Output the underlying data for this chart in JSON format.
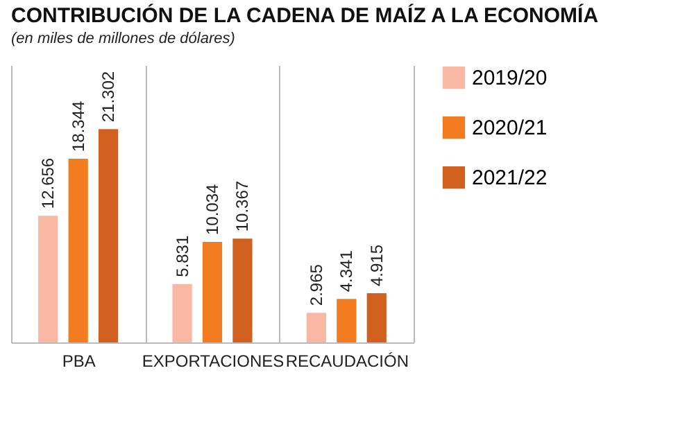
{
  "chart_data": {
    "type": "bar",
    "title": "CONTRIBUCIÓN DE LA CADENA DE MAÍZ A LA ECONOMÍA",
    "subtitle": "(en miles de millones de dólares)",
    "categories": [
      "PBA",
      "EXPORTACIONES",
      "RECAUDACIÓN"
    ],
    "series": [
      {
        "name": "2019/20",
        "color": "#f9b8a4",
        "values": [
          12.656,
          5.831,
          2.965
        ],
        "value_labels": [
          "12.656",
          "5.831",
          "2.965"
        ]
      },
      {
        "name": "2020/21",
        "color": "#f47c20",
        "values": [
          18.344,
          10.034,
          4.341
        ],
        "value_labels": [
          "18.344",
          "10.034",
          "4.341"
        ]
      },
      {
        "name": "2021/22",
        "color": "#d2601e",
        "values": [
          21.302,
          10.367,
          4.915
        ],
        "value_labels": [
          "21.302",
          "10.367",
          "4.915"
        ]
      }
    ],
    "grid": "x",
    "legend": "right"
  }
}
